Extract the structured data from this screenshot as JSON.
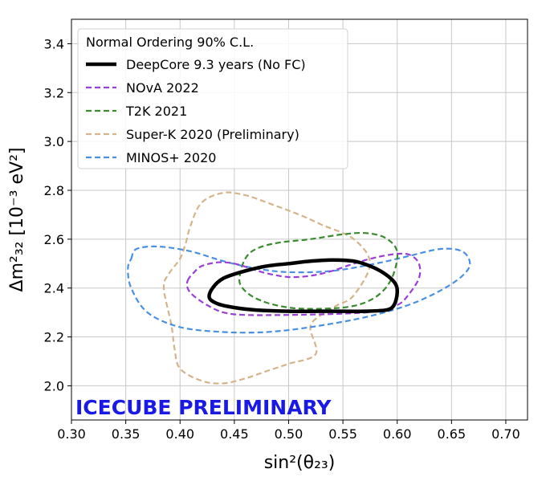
{
  "chart_data": {
    "type": "line",
    "xlabel": "sin²(θ₂₃)",
    "ylabel": "Δm²₃₂ [10⁻³ eV²]",
    "xlim": [
      0.3,
      0.72
    ],
    "ylim": [
      1.86,
      3.5
    ],
    "xticks": [
      0.3,
      0.35,
      0.4,
      0.45,
      0.5,
      0.55,
      0.6,
      0.65,
      0.7
    ],
    "xtick_labels": [
      "0.30",
      "0.35",
      "0.40",
      "0.45",
      "0.50",
      "0.55",
      "0.60",
      "0.65",
      "0.70"
    ],
    "yticks": [
      2.0,
      2.2,
      2.4,
      2.6,
      2.8,
      3.0,
      3.2,
      3.4
    ],
    "ytick_labels": [
      "2.0",
      "2.2",
      "2.4",
      "2.6",
      "2.8",
      "3.0",
      "3.2",
      "3.4"
    ],
    "grid": true,
    "legend": {
      "title": "Normal Ordering 90% C.L.",
      "placement": "top-left"
    },
    "watermark": {
      "text": "ICECUBE PRELIMINARY",
      "color": "#1a1ae6"
    },
    "series": [
      {
        "name": "DeepCore 9.3 years (No FC)",
        "color": "#000000",
        "style": "solid",
        "closed": true,
        "points": [
          [
            0.427,
            2.36
          ],
          [
            0.43,
            2.4
          ],
          [
            0.44,
            2.44
          ],
          [
            0.46,
            2.47
          ],
          [
            0.48,
            2.49
          ],
          [
            0.5,
            2.5
          ],
          [
            0.52,
            2.51
          ],
          [
            0.54,
            2.515
          ],
          [
            0.56,
            2.51
          ],
          [
            0.575,
            2.49
          ],
          [
            0.588,
            2.46
          ],
          [
            0.598,
            2.42
          ],
          [
            0.6,
            2.38
          ],
          [
            0.597,
            2.33
          ],
          [
            0.59,
            2.31
          ],
          [
            0.57,
            2.305
          ],
          [
            0.54,
            2.305
          ],
          [
            0.5,
            2.305
          ],
          [
            0.47,
            2.31
          ],
          [
            0.45,
            2.32
          ],
          [
            0.435,
            2.335
          ]
        ]
      },
      {
        "name": "NOvA 2022",
        "color": "#9a3fd6",
        "style": "dashed",
        "closed": true,
        "points": [
          [
            0.407,
            2.43
          ],
          [
            0.412,
            2.46
          ],
          [
            0.42,
            2.49
          ],
          [
            0.435,
            2.505
          ],
          [
            0.45,
            2.5
          ],
          [
            0.465,
            2.48
          ],
          [
            0.48,
            2.46
          ],
          [
            0.5,
            2.445
          ],
          [
            0.52,
            2.45
          ],
          [
            0.54,
            2.47
          ],
          [
            0.56,
            2.5
          ],
          [
            0.58,
            2.525
          ],
          [
            0.6,
            2.54
          ],
          [
            0.612,
            2.535
          ],
          [
            0.62,
            2.5
          ],
          [
            0.62,
            2.44
          ],
          [
            0.61,
            2.37
          ],
          [
            0.6,
            2.33
          ],
          [
            0.58,
            2.305
          ],
          [
            0.55,
            2.295
          ],
          [
            0.5,
            2.29
          ],
          [
            0.46,
            2.29
          ],
          [
            0.44,
            2.3
          ],
          [
            0.425,
            2.33
          ],
          [
            0.412,
            2.37
          ],
          [
            0.407,
            2.4
          ]
        ]
      },
      {
        "name": "T2K 2021",
        "color": "#3a8a2e",
        "style": "dashed",
        "closed": true,
        "points": [
          [
            0.455,
            2.45
          ],
          [
            0.46,
            2.52
          ],
          [
            0.47,
            2.56
          ],
          [
            0.49,
            2.585
          ],
          [
            0.52,
            2.6
          ],
          [
            0.55,
            2.62
          ],
          [
            0.57,
            2.625
          ],
          [
            0.587,
            2.61
          ],
          [
            0.598,
            2.57
          ],
          [
            0.6,
            2.52
          ],
          [
            0.595,
            2.44
          ],
          [
            0.585,
            2.38
          ],
          [
            0.57,
            2.34
          ],
          [
            0.55,
            2.32
          ],
          [
            0.52,
            2.315
          ],
          [
            0.5,
            2.32
          ],
          [
            0.48,
            2.34
          ],
          [
            0.465,
            2.37
          ],
          [
            0.456,
            2.41
          ]
        ]
      },
      {
        "name": "Super-K 2020 (Preliminary)",
        "color": "#d4b48c",
        "style": "dashed",
        "closed": true,
        "points": [
          [
            0.392,
            2.25
          ],
          [
            0.385,
            2.4
          ],
          [
            0.39,
            2.46
          ],
          [
            0.4,
            2.52
          ],
          [
            0.405,
            2.58
          ],
          [
            0.41,
            2.66
          ],
          [
            0.42,
            2.75
          ],
          [
            0.44,
            2.79
          ],
          [
            0.46,
            2.78
          ],
          [
            0.48,
            2.75
          ],
          [
            0.51,
            2.7
          ],
          [
            0.53,
            2.66
          ],
          [
            0.56,
            2.6
          ],
          [
            0.575,
            2.5
          ],
          [
            0.56,
            2.37
          ],
          [
            0.545,
            2.33
          ],
          [
            0.53,
            2.29
          ],
          [
            0.52,
            2.24
          ],
          [
            0.525,
            2.13
          ],
          [
            0.5,
            2.09
          ],
          [
            0.48,
            2.06
          ],
          [
            0.46,
            2.03
          ],
          [
            0.44,
            2.01
          ],
          [
            0.42,
            2.02
          ],
          [
            0.4,
            2.07
          ],
          [
            0.395,
            2.15
          ]
        ]
      },
      {
        "name": "MINOS+ 2020",
        "color": "#4a90e2",
        "style": "dashed",
        "closed": true,
        "points": [
          [
            0.355,
            2.52
          ],
          [
            0.36,
            2.56
          ],
          [
            0.38,
            2.57
          ],
          [
            0.41,
            2.55
          ],
          [
            0.44,
            2.51
          ],
          [
            0.47,
            2.48
          ],
          [
            0.5,
            2.465
          ],
          [
            0.54,
            2.47
          ],
          [
            0.58,
            2.5
          ],
          [
            0.61,
            2.53
          ],
          [
            0.64,
            2.56
          ],
          [
            0.66,
            2.55
          ],
          [
            0.667,
            2.5
          ],
          [
            0.66,
            2.45
          ],
          [
            0.64,
            2.39
          ],
          [
            0.61,
            2.33
          ],
          [
            0.57,
            2.28
          ],
          [
            0.52,
            2.24
          ],
          [
            0.48,
            2.22
          ],
          [
            0.44,
            2.22
          ],
          [
            0.4,
            2.24
          ],
          [
            0.37,
            2.3
          ],
          [
            0.355,
            2.4
          ],
          [
            0.352,
            2.48
          ]
        ]
      }
    ]
  }
}
